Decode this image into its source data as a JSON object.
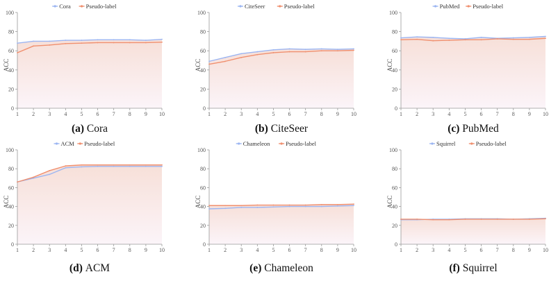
{
  "colors": {
    "acc_line": "#9bb5f2",
    "pseudo_line": "#f08f6e",
    "fill_top": "#f6dcd4",
    "fill_bottom": "#fbf3f8",
    "axis": "#999999"
  },
  "chart_data": [
    {
      "type": "area",
      "letter": "(a)",
      "title": "Cora",
      "xlabel": "",
      "ylabel": "ACC",
      "x": [
        1,
        2,
        3,
        4,
        5,
        6,
        7,
        8,
        9,
        10
      ],
      "xlim": [
        1,
        10
      ],
      "ylim": [
        0,
        100
      ],
      "yticks": [
        0,
        20,
        40,
        60,
        80,
        100
      ],
      "grid": false,
      "legend_position": "top-center",
      "series": [
        {
          "name": "Cora",
          "values": [
            68,
            70,
            70,
            71,
            71,
            71.5,
            71.5,
            71.5,
            71,
            72
          ]
        },
        {
          "name": "Pseudo-label",
          "values": [
            58,
            65,
            66,
            67.5,
            68,
            68.5,
            68.5,
            68.5,
            68.5,
            69
          ]
        }
      ]
    },
    {
      "type": "area",
      "letter": "(b)",
      "title": "CiteSeer",
      "xlabel": "",
      "ylabel": "ACC",
      "x": [
        1,
        2,
        3,
        4,
        5,
        6,
        7,
        8,
        9,
        10
      ],
      "xlim": [
        1,
        10
      ],
      "ylim": [
        0,
        100
      ],
      "yticks": [
        0,
        20,
        40,
        60,
        80,
        100
      ],
      "grid": false,
      "legend_position": "top-center",
      "series": [
        {
          "name": "CiteSeer",
          "values": [
            49,
            53,
            57,
            59,
            61,
            62,
            61.5,
            62,
            61.5,
            62
          ]
        },
        {
          "name": "Pseudo-label",
          "values": [
            46,
            49,
            53,
            56,
            58,
            59,
            59,
            60,
            60,
            60.5
          ]
        }
      ]
    },
    {
      "type": "area",
      "letter": "(c)",
      "title": "PubMed",
      "xlabel": "",
      "ylabel": "ACC",
      "x": [
        1,
        2,
        3,
        4,
        5,
        6,
        7,
        8,
        9,
        10
      ],
      "xlim": [
        1,
        10
      ],
      "ylim": [
        0,
        100
      ],
      "yticks": [
        0,
        20,
        40,
        60,
        80,
        100
      ],
      "grid": false,
      "legend_position": "top-center",
      "series": [
        {
          "name": "PubMed",
          "values": [
            73.5,
            74.5,
            74,
            73,
            72.5,
            74,
            73,
            73.5,
            74,
            75
          ]
        },
        {
          "name": "Pseudo-label",
          "values": [
            71.5,
            72,
            70.5,
            71,
            71.5,
            71.5,
            72.5,
            72,
            72,
            73
          ]
        }
      ]
    },
    {
      "type": "area",
      "letter": "(d)",
      "title": "ACM",
      "xlabel": "",
      "ylabel": "ACC",
      "x": [
        1,
        2,
        3,
        4,
        5,
        6,
        7,
        8,
        9,
        10
      ],
      "xlim": [
        1,
        10
      ],
      "ylim": [
        0,
        100
      ],
      "yticks": [
        0,
        20,
        40,
        60,
        80,
        100
      ],
      "grid": false,
      "legend_position": "top-center",
      "series": [
        {
          "name": "ACM",
          "values": [
            66,
            70,
            74,
            81,
            82,
            82.5,
            82.5,
            82.5,
            82.5,
            82.5
          ]
        },
        {
          "name": "Pseudo-label",
          "values": [
            66,
            71,
            78,
            83,
            84,
            84,
            84,
            84,
            84,
            84
          ]
        }
      ]
    },
    {
      "type": "area",
      "letter": "(e)",
      "title": "Chameleon",
      "xlabel": "",
      "ylabel": "ACC",
      "x": [
        1,
        2,
        3,
        4,
        5,
        6,
        7,
        8,
        9,
        10
      ],
      "xlim": [
        1,
        10
      ],
      "ylim": [
        0,
        100
      ],
      "yticks": [
        0,
        20,
        40,
        60,
        80,
        100
      ],
      "grid": false,
      "legend_position": "top-center",
      "series": [
        {
          "name": "Chameleon",
          "values": [
            37.5,
            38,
            39,
            39,
            39.5,
            40,
            40,
            40,
            40.5,
            41
          ]
        },
        {
          "name": "Pseudo-label",
          "values": [
            41,
            41,
            41,
            41.5,
            41.5,
            41.5,
            41.5,
            42,
            42,
            42.5
          ]
        }
      ]
    },
    {
      "type": "area",
      "letter": "(f)",
      "title": "Squirrel",
      "xlabel": "",
      "ylabel": "ACC",
      "x": [
        1,
        2,
        3,
        4,
        5,
        6,
        7,
        8,
        9,
        10
      ],
      "xlim": [
        1,
        10
      ],
      "ylim": [
        0,
        100
      ],
      "yticks": [
        0,
        20,
        40,
        60,
        80,
        100
      ],
      "grid": false,
      "legend_position": "top-center",
      "series": [
        {
          "name": "Squirrel",
          "values": [
            26,
            26,
            26.5,
            26.5,
            27,
            27,
            27,
            26.5,
            27,
            27.5
          ]
        },
        {
          "name": "Pseudo-label",
          "values": [
            26.5,
            26.5,
            26,
            26,
            26.5,
            26.5,
            26.5,
            26.5,
            26.5,
            27
          ]
        }
      ]
    }
  ]
}
